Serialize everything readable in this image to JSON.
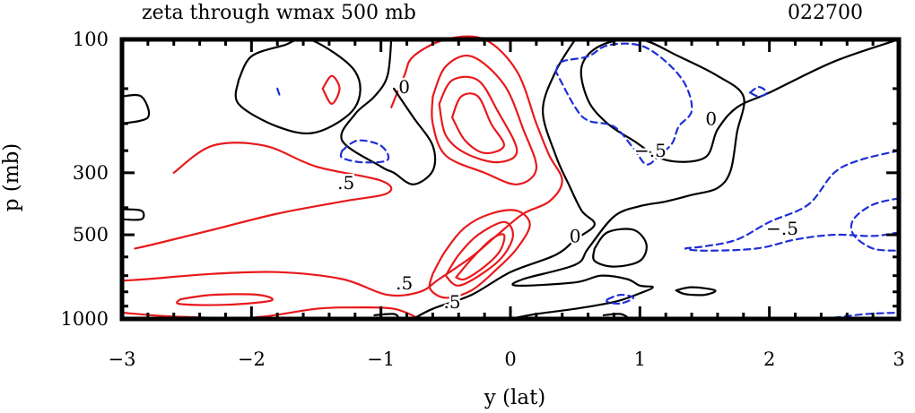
{
  "chart_data": {
    "type": "contour",
    "title": "zeta through wmax 500 mb",
    "date_label": "022700",
    "xlabel": "y (lat)",
    "ylabel": "p (mb)",
    "xlim": [
      -3,
      3
    ],
    "ylim": [
      1000,
      100
    ],
    "y_scale": "log",
    "x_ticks": [
      -3,
      -2,
      -1,
      0,
      1,
      2,
      3
    ],
    "x_tick_labels": [
      "−3",
      "−2",
      "−1",
      "0",
      "1",
      "2",
      "3"
    ],
    "y_ticks": [
      100,
      300,
      500,
      1000
    ],
    "y_tick_labels": [
      "100",
      "300",
      "500",
      "1000"
    ],
    "contour_interval": 0.5,
    "colors": {
      "positive": "#e8191c",
      "zero": "#000000",
      "negative": "#1f2fd6"
    },
    "contour_labels": [
      {
        "text": "0",
        "x": -0.82,
        "p": 148
      },
      {
        "text": "0",
        "x": 1.55,
        "p": 192
      },
      {
        "text": "0",
        "x": 0.5,
        "p": 505
      },
      {
        "text": ".5",
        "x": -1.27,
        "p": 326
      },
      {
        "text": ".5",
        "x": -0.82,
        "p": 745
      },
      {
        "text": ".5",
        "x": -0.45,
        "p": 870
      },
      {
        "text": "−.5",
        "x": 1.08,
        "p": 250
      },
      {
        "text": "−.5",
        "x": 2.1,
        "p": 475
      }
    ],
    "contours": [
      {
        "level": 0.5,
        "points": [
          [
            -2.6,
            300
          ],
          [
            -2.3,
            240
          ],
          [
            -1.9,
            240
          ],
          [
            -1.5,
            285
          ],
          [
            -1.0,
            320
          ],
          [
            -0.95,
            355
          ],
          [
            -1.3,
            380
          ],
          [
            -1.8,
            420
          ],
          [
            -2.3,
            480
          ],
          [
            -2.75,
            540
          ],
          [
            -2.9,
            560
          ]
        ]
      },
      {
        "level": 0.5,
        "points": [
          [
            -0.92,
            175
          ],
          [
            -0.82,
            135
          ],
          [
            -0.75,
            115
          ],
          [
            -0.5,
            100
          ],
          [
            -0.2,
            100
          ],
          [
            0.05,
            130
          ],
          [
            0.2,
            200
          ],
          [
            0.3,
            260
          ],
          [
            0.4,
            320
          ],
          [
            0.3,
            380
          ],
          [
            0.1,
            420
          ],
          [
            -0.1,
            500
          ],
          [
            -0.3,
            600
          ],
          [
            -0.55,
            720
          ],
          [
            -0.7,
            800
          ],
          [
            -0.95,
            820
          ],
          [
            -1.3,
            720
          ],
          [
            -1.8,
            680
          ],
          [
            -2.3,
            690
          ],
          [
            -2.8,
            720
          ],
          [
            -3.0,
            730
          ]
        ]
      },
      {
        "level": 1.0,
        "points": [
          [
            -0.6,
            160
          ],
          [
            -0.5,
            125
          ],
          [
            -0.3,
            115
          ],
          [
            -0.05,
            145
          ],
          [
            0.1,
            210
          ],
          [
            0.2,
            290
          ],
          [
            0.05,
            330
          ],
          [
            -0.2,
            300
          ],
          [
            -0.5,
            260
          ],
          [
            -0.6,
            200
          ],
          [
            -0.6,
            160
          ]
        ]
      },
      {
        "level": 1.5,
        "points": [
          [
            -0.55,
            170
          ],
          [
            -0.45,
            140
          ],
          [
            -0.25,
            140
          ],
          [
            -0.1,
            180
          ],
          [
            0.05,
            250
          ],
          [
            -0.1,
            275
          ],
          [
            -0.35,
            255
          ],
          [
            -0.5,
            220
          ],
          [
            -0.55,
            170
          ]
        ]
      },
      {
        "level": 2.0,
        "points": [
          [
            -0.45,
            190
          ],
          [
            -0.38,
            160
          ],
          [
            -0.25,
            160
          ],
          [
            -0.15,
            200
          ],
          [
            -0.05,
            240
          ],
          [
            -0.2,
            255
          ],
          [
            -0.35,
            230
          ],
          [
            -0.45,
            190
          ]
        ]
      },
      {
        "level": 1.0,
        "points": [
          [
            -0.6,
            690
          ],
          [
            -0.5,
            570
          ],
          [
            -0.35,
            470
          ],
          [
            -0.15,
            420
          ],
          [
            0.05,
            410
          ],
          [
            0.15,
            460
          ],
          [
            0.05,
            560
          ],
          [
            -0.1,
            660
          ],
          [
            -0.3,
            790
          ],
          [
            -0.5,
            840
          ],
          [
            -0.62,
            780
          ],
          [
            -0.6,
            690
          ]
        ]
      },
      {
        "level": 1.5,
        "points": [
          [
            -0.5,
            700
          ],
          [
            -0.4,
            590
          ],
          [
            -0.25,
            500
          ],
          [
            -0.05,
            450
          ],
          [
            0.02,
            500
          ],
          [
            -0.05,
            590
          ],
          [
            -0.2,
            680
          ],
          [
            -0.4,
            760
          ],
          [
            -0.5,
            700
          ]
        ]
      },
      {
        "level": 2.0,
        "points": [
          [
            -0.42,
            710
          ],
          [
            -0.3,
            610
          ],
          [
            -0.15,
            520
          ],
          [
            -0.05,
            500
          ],
          [
            -0.08,
            570
          ],
          [
            -0.2,
            650
          ],
          [
            -0.35,
            720
          ],
          [
            -0.42,
            710
          ]
        ]
      },
      {
        "level": 1.0,
        "points": [
          [
            -2.55,
            850
          ],
          [
            -2.3,
            820
          ],
          [
            -1.95,
            820
          ],
          [
            -1.85,
            860
          ],
          [
            -2.2,
            890
          ],
          [
            -2.55,
            885
          ],
          [
            -2.55,
            850
          ]
        ]
      },
      {
        "level": 1.0,
        "points": [
          [
            -1.45,
            150
          ],
          [
            -1.38,
            135
          ],
          [
            -1.32,
            150
          ],
          [
            -1.38,
            170
          ],
          [
            -1.45,
            150
          ]
        ]
      },
      {
        "level": 0.5,
        "points": [
          [
            -3.0,
            950
          ],
          [
            -2.6,
            980
          ],
          [
            -2.0,
            990
          ],
          [
            -1.5,
            920
          ],
          [
            -1.2,
            910
          ],
          [
            -0.9,
            920
          ],
          [
            -0.7,
            1000
          ]
        ]
      },
      {
        "level": 0,
        "points": [
          [
            -2.1,
            140
          ],
          [
            -2.0,
            115
          ],
          [
            -1.75,
            105
          ],
          [
            -1.55,
            100
          ],
          [
            -1.2,
            130
          ],
          [
            -1.2,
            175
          ],
          [
            -1.5,
            215
          ],
          [
            -1.8,
            205
          ],
          [
            -2.1,
            170
          ],
          [
            -2.1,
            140
          ]
        ]
      },
      {
        "level": 0,
        "points": [
          [
            -0.92,
            100
          ],
          [
            -0.95,
            135
          ],
          [
            -1.05,
            160
          ],
          [
            -1.2,
            185
          ],
          [
            -1.3,
            230
          ],
          [
            -1.0,
            285
          ],
          [
            -0.9,
            300
          ],
          [
            -0.75,
            330
          ],
          [
            -0.6,
            295
          ],
          [
            -0.6,
            240
          ],
          [
            -0.75,
            190
          ],
          [
            -0.9,
            150
          ]
        ]
      },
      {
        "level": 0,
        "points": [
          [
            0.5,
            100
          ],
          [
            0.35,
            130
          ],
          [
            0.25,
            180
          ],
          [
            0.35,
            260
          ],
          [
            0.45,
            330
          ],
          [
            0.55,
            410
          ],
          [
            0.65,
            460
          ],
          [
            0.5,
            520
          ],
          [
            0.35,
            590
          ],
          [
            0.0,
            680
          ],
          [
            -0.3,
            820
          ],
          [
            -0.6,
            920
          ],
          [
            -0.75,
            1000
          ]
        ]
      },
      {
        "level": 0,
        "points": [
          [
            3.0,
            100
          ],
          [
            2.5,
            120
          ],
          [
            2.0,
            155
          ],
          [
            1.75,
            175
          ],
          [
            1.6,
            210
          ],
          [
            1.5,
            265
          ],
          [
            1.2,
            270
          ],
          [
            0.95,
            230
          ],
          [
            0.75,
            200
          ],
          [
            0.6,
            165
          ],
          [
            0.55,
            125
          ],
          [
            0.7,
            105
          ],
          [
            1.0,
            100
          ],
          [
            1.3,
            115
          ],
          [
            1.6,
            135
          ],
          [
            1.8,
            160
          ],
          [
            1.75,
            215
          ],
          [
            1.7,
            295
          ],
          [
            1.6,
            340
          ],
          [
            1.4,
            360
          ],
          [
            1.2,
            380
          ],
          [
            1.0,
            395
          ],
          [
            0.8,
            430
          ],
          [
            0.6,
            560
          ],
          [
            0.5,
            640
          ],
          [
            0.1,
            720
          ],
          [
            0.05,
            760
          ],
          [
            0.5,
            740
          ],
          [
            0.7,
            700
          ],
          [
            0.9,
            720
          ],
          [
            1.0,
            760
          ],
          [
            1.1,
            770
          ],
          [
            1.0,
            810
          ],
          [
            0.8,
            870
          ],
          [
            0.5,
            920
          ],
          [
            0.2,
            960
          ],
          [
            0.0,
            1000
          ]
        ]
      },
      {
        "level": 0,
        "points": [
          [
            0.65,
            560
          ],
          [
            0.75,
            490
          ],
          [
            0.95,
            480
          ],
          [
            1.05,
            540
          ],
          [
            1.0,
            620
          ],
          [
            0.8,
            650
          ],
          [
            0.65,
            620
          ],
          [
            0.65,
            560
          ]
        ]
      },
      {
        "level": 0,
        "points": [
          [
            1.28,
            790
          ],
          [
            1.4,
            770
          ],
          [
            1.58,
            790
          ],
          [
            1.5,
            820
          ],
          [
            1.35,
            815
          ],
          [
            1.28,
            790
          ]
        ]
      },
      {
        "level": 0,
        "points": [
          [
            -3.0,
            160
          ],
          [
            -2.85,
            160
          ],
          [
            -2.8,
            190
          ],
          [
            -3.0,
            200
          ]
        ]
      },
      {
        "level": 0,
        "points": [
          [
            -3.0,
            405
          ],
          [
            -2.85,
            410
          ],
          [
            -2.85,
            440
          ],
          [
            -3.0,
            440
          ]
        ]
      },
      {
        "level": 0,
        "points": [
          [
            -1.05,
            970
          ],
          [
            -0.9,
            960
          ],
          [
            -0.88,
            1000
          ],
          [
            -1.05,
            1000
          ]
        ]
      },
      {
        "level": 0,
        "points": [
          [
            0.72,
            970
          ],
          [
            0.85,
            960
          ],
          [
            0.9,
            1000
          ],
          [
            0.72,
            1000
          ]
        ]
      },
      {
        "level": -0.5,
        "points": [
          [
            0.35,
            130
          ],
          [
            0.4,
            120
          ],
          [
            0.6,
            115
          ],
          [
            0.75,
            105
          ],
          [
            1.0,
            105
          ],
          [
            1.2,
            120
          ],
          [
            1.35,
            145
          ],
          [
            1.4,
            180
          ],
          [
            1.3,
            205
          ],
          [
            1.25,
            235
          ],
          [
            1.15,
            260
          ],
          [
            1.05,
            280
          ],
          [
            0.95,
            245
          ],
          [
            0.8,
            205
          ],
          [
            0.6,
            195
          ],
          [
            0.5,
            175
          ],
          [
            0.35,
            130
          ]
        ]
      },
      {
        "level": -0.5,
        "points": [
          [
            3.0,
            250
          ],
          [
            2.7,
            270
          ],
          [
            2.5,
            300
          ],
          [
            2.3,
            390
          ],
          [
            2.0,
            450
          ],
          [
            1.75,
            520
          ],
          [
            1.5,
            550
          ],
          [
            1.35,
            560
          ],
          [
            1.5,
            570
          ],
          [
            1.9,
            560
          ],
          [
            2.2,
            520
          ],
          [
            2.5,
            500
          ],
          [
            2.8,
            505
          ],
          [
            3.0,
            490
          ]
        ]
      },
      {
        "level": -0.5,
        "points": [
          [
            3.0,
            370
          ],
          [
            2.8,
            390
          ],
          [
            2.65,
            440
          ],
          [
            2.65,
            500
          ],
          [
            2.8,
            560
          ],
          [
            3.0,
            570
          ]
        ]
      },
      {
        "level": -0.5,
        "points": [
          [
            -1.3,
            250
          ],
          [
            -1.18,
            230
          ],
          [
            -1.0,
            240
          ],
          [
            -0.95,
            270
          ],
          [
            -1.15,
            275
          ],
          [
            -1.3,
            265
          ],
          [
            -1.3,
            250
          ]
        ]
      },
      {
        "level": -0.5,
        "points": [
          [
            0.75,
            850
          ],
          [
            0.85,
            820
          ],
          [
            0.95,
            840
          ],
          [
            0.85,
            880
          ],
          [
            0.75,
            870
          ],
          [
            0.75,
            850
          ]
        ]
      },
      {
        "level": -0.5,
        "points": [
          [
            1.85,
            155
          ],
          [
            1.92,
            148
          ],
          [
            1.98,
            155
          ],
          [
            1.92,
            160
          ],
          [
            1.85,
            155
          ]
        ]
      },
      {
        "level": -0.5,
        "points": [
          [
            2.5,
            990
          ],
          [
            2.75,
            960
          ],
          [
            3.0,
            950
          ]
        ]
      },
      {
        "level": -0.5,
        "points": [
          [
            -1.8,
            150
          ],
          [
            -1.78,
            160
          ]
        ]
      }
    ]
  }
}
